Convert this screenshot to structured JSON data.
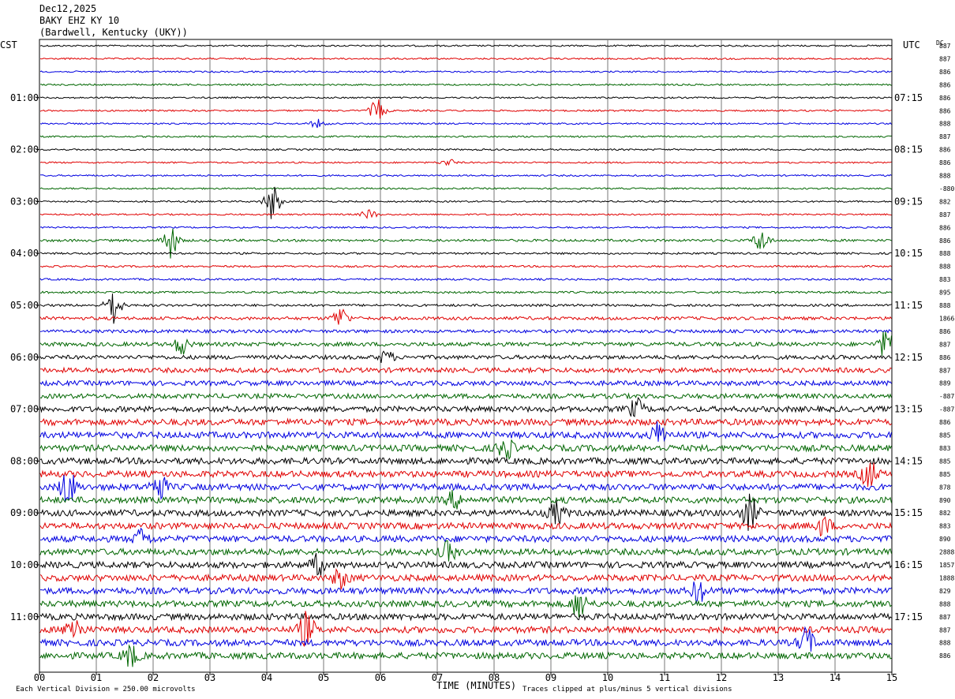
{
  "header": {
    "date": "Dec12,2025",
    "station": "BAKY EHZ KY 10",
    "location": "(Bardwell, Kentucky (UKY))"
  },
  "labels": {
    "left_zone": "CST",
    "right_zone": "UTC",
    "dc": "DC",
    "xlabel": "TIME (MINUTES)",
    "scale_note": "Each Vertical Division =  250.00 microvolts",
    "clip_note": "Traces clipped at plus/minus 5 vertical divisions"
  },
  "chart_data": {
    "type": "line",
    "title": "",
    "xlabel": "TIME (MINUTES)",
    "xlim": [
      0,
      15
    ],
    "x_ticks": [
      "00",
      "01",
      "02",
      "03",
      "04",
      "05",
      "06",
      "07",
      "08",
      "09",
      "10",
      "11",
      "12",
      "13",
      "14",
      "15"
    ],
    "left_time_labels": [
      "01:00",
      "02:00",
      "03:00",
      "04:00",
      "05:00",
      "06:00",
      "07:00",
      "08:00",
      "09:00",
      "10:00",
      "11:00"
    ],
    "right_time_labels": [
      "07:15",
      "08:15",
      "09:15",
      "10:15",
      "11:15",
      "12:15",
      "13:15",
      "14:15",
      "15:15",
      "16:15",
      "17:15"
    ],
    "trace_count": 48,
    "trace_colors": [
      "#000000",
      "#e00000",
      "#0000e0",
      "#006600"
    ],
    "dc_offsets": [
      "887",
      "887",
      "886",
      "886",
      "886",
      "886",
      "888",
      "887",
      "886",
      "886",
      "888",
      "-880",
      "882",
      "887",
      "886",
      "886",
      "888",
      "888",
      "883",
      "895",
      "888",
      "1866",
      "886",
      "887",
      "886",
      "887",
      "889",
      "-887",
      "-887",
      "886",
      "885",
      "883",
      "885",
      "885",
      "878",
      "890",
      "882",
      "883",
      "890",
      "2888",
      "1857",
      "1888",
      "829",
      "888",
      "887",
      "887",
      "888",
      "886"
    ],
    "noise_amplitude": [
      1,
      1,
      1,
      1,
      1,
      1,
      1,
      1,
      1,
      1,
      1,
      1,
      1,
      1,
      1,
      1.5,
      1.2,
      1.2,
      1.2,
      1.3,
      1.5,
      2,
      2,
      2.5,
      2.5,
      3,
      3,
      3,
      3.5,
      4,
      4,
      4,
      4,
      4,
      4,
      4,
      4,
      4,
      4,
      4,
      4,
      4,
      4,
      4,
      4,
      4,
      4,
      4
    ],
    "events": [
      {
        "trace": 5,
        "minute": 5.95,
        "amp": 14
      },
      {
        "trace": 6,
        "minute": 4.9,
        "amp": 5
      },
      {
        "trace": 9,
        "minute": 7.2,
        "amp": 4
      },
      {
        "trace": 12,
        "minute": 4.1,
        "amp": 22
      },
      {
        "trace": 13,
        "minute": 5.8,
        "amp": 6
      },
      {
        "trace": 15,
        "minute": 2.3,
        "amp": 22
      },
      {
        "trace": 15,
        "minute": 12.7,
        "amp": 14
      },
      {
        "trace": 20,
        "minute": 1.3,
        "amp": 24
      },
      {
        "trace": 21,
        "minute": 5.3,
        "amp": 14
      },
      {
        "trace": 23,
        "minute": 2.5,
        "amp": 12
      },
      {
        "trace": 23,
        "minute": 14.9,
        "amp": 18
      },
      {
        "trace": 24,
        "minute": 6.1,
        "amp": 8
      },
      {
        "trace": 28,
        "minute": 10.5,
        "amp": 12
      },
      {
        "trace": 30,
        "minute": 10.9,
        "amp": 16
      },
      {
        "trace": 31,
        "minute": 8.2,
        "amp": 14
      },
      {
        "trace": 33,
        "minute": 14.6,
        "amp": 18
      },
      {
        "trace": 34,
        "minute": 0.5,
        "amp": 22
      },
      {
        "trace": 34,
        "minute": 2.1,
        "amp": 18
      },
      {
        "trace": 35,
        "minute": 7.3,
        "amp": 10
      },
      {
        "trace": 36,
        "minute": 12.5,
        "amp": 22
      },
      {
        "trace": 36,
        "minute": 9.1,
        "amp": 14
      },
      {
        "trace": 37,
        "minute": 13.8,
        "amp": 12
      },
      {
        "trace": 38,
        "minute": 1.8,
        "amp": 12
      },
      {
        "trace": 39,
        "minute": 7.2,
        "amp": 12
      },
      {
        "trace": 40,
        "minute": 4.9,
        "amp": 12
      },
      {
        "trace": 41,
        "minute": 5.3,
        "amp": 12
      },
      {
        "trace": 42,
        "minute": 11.6,
        "amp": 14
      },
      {
        "trace": 43,
        "minute": 9.5,
        "amp": 18
      },
      {
        "trace": 45,
        "minute": 0.6,
        "amp": 18
      },
      {
        "trace": 45,
        "minute": 4.7,
        "amp": 22
      },
      {
        "trace": 46,
        "minute": 13.5,
        "amp": 18
      },
      {
        "trace": 47,
        "minute": 1.6,
        "amp": 14
      }
    ]
  }
}
